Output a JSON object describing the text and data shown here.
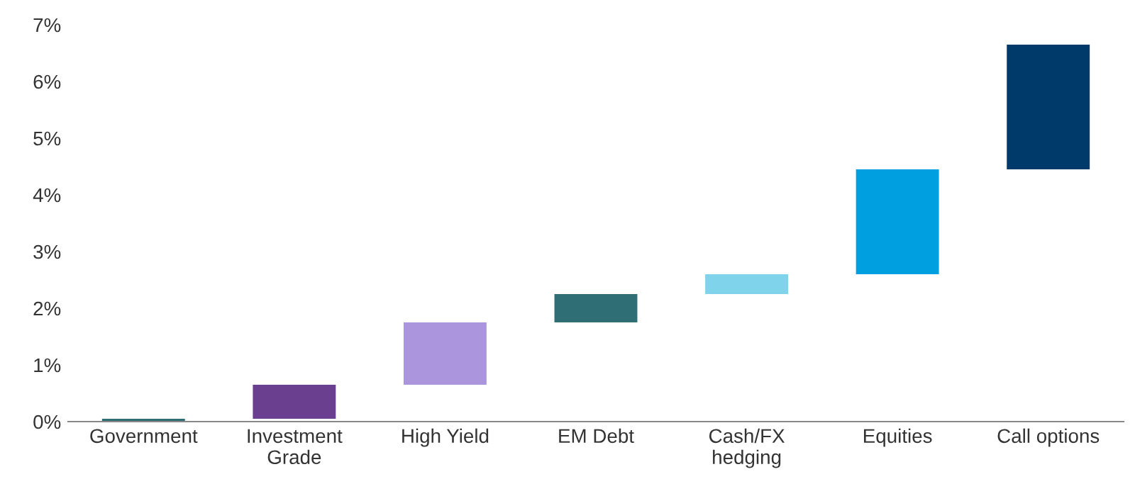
{
  "chart_data": {
    "type": "bar",
    "categories": [
      "Government",
      "Investment\nGrade",
      "High Yield",
      "EM Debt",
      "Cash/FX\nhedging",
      "Equities",
      "Call options"
    ],
    "values": [
      0.05,
      0.6,
      1.1,
      0.5,
      0.35,
      1.85,
      2.2
    ],
    "base": [
      0,
      0.05,
      0.65,
      1.75,
      2.25,
      2.6,
      4.45
    ],
    "colors": [
      "#2e6e74",
      "#6b3f8f",
      "#ab95dc",
      "#2e6e74",
      "#7fd3ea",
      "#00a0e0",
      "#003a6a"
    ],
    "ylim": [
      0,
      7
    ],
    "yticks": [
      {
        "value": 0,
        "label": "0%"
      },
      {
        "value": 1,
        "label": "1%"
      },
      {
        "value": 2,
        "label": "2%"
      },
      {
        "value": 3,
        "label": "3%"
      },
      {
        "value": 4,
        "label": "4%"
      },
      {
        "value": 5,
        "label": "5%"
      },
      {
        "value": 6,
        "label": "6%"
      },
      {
        "value": 7,
        "label": "7%"
      }
    ],
    "grid": false,
    "legend": false
  }
}
